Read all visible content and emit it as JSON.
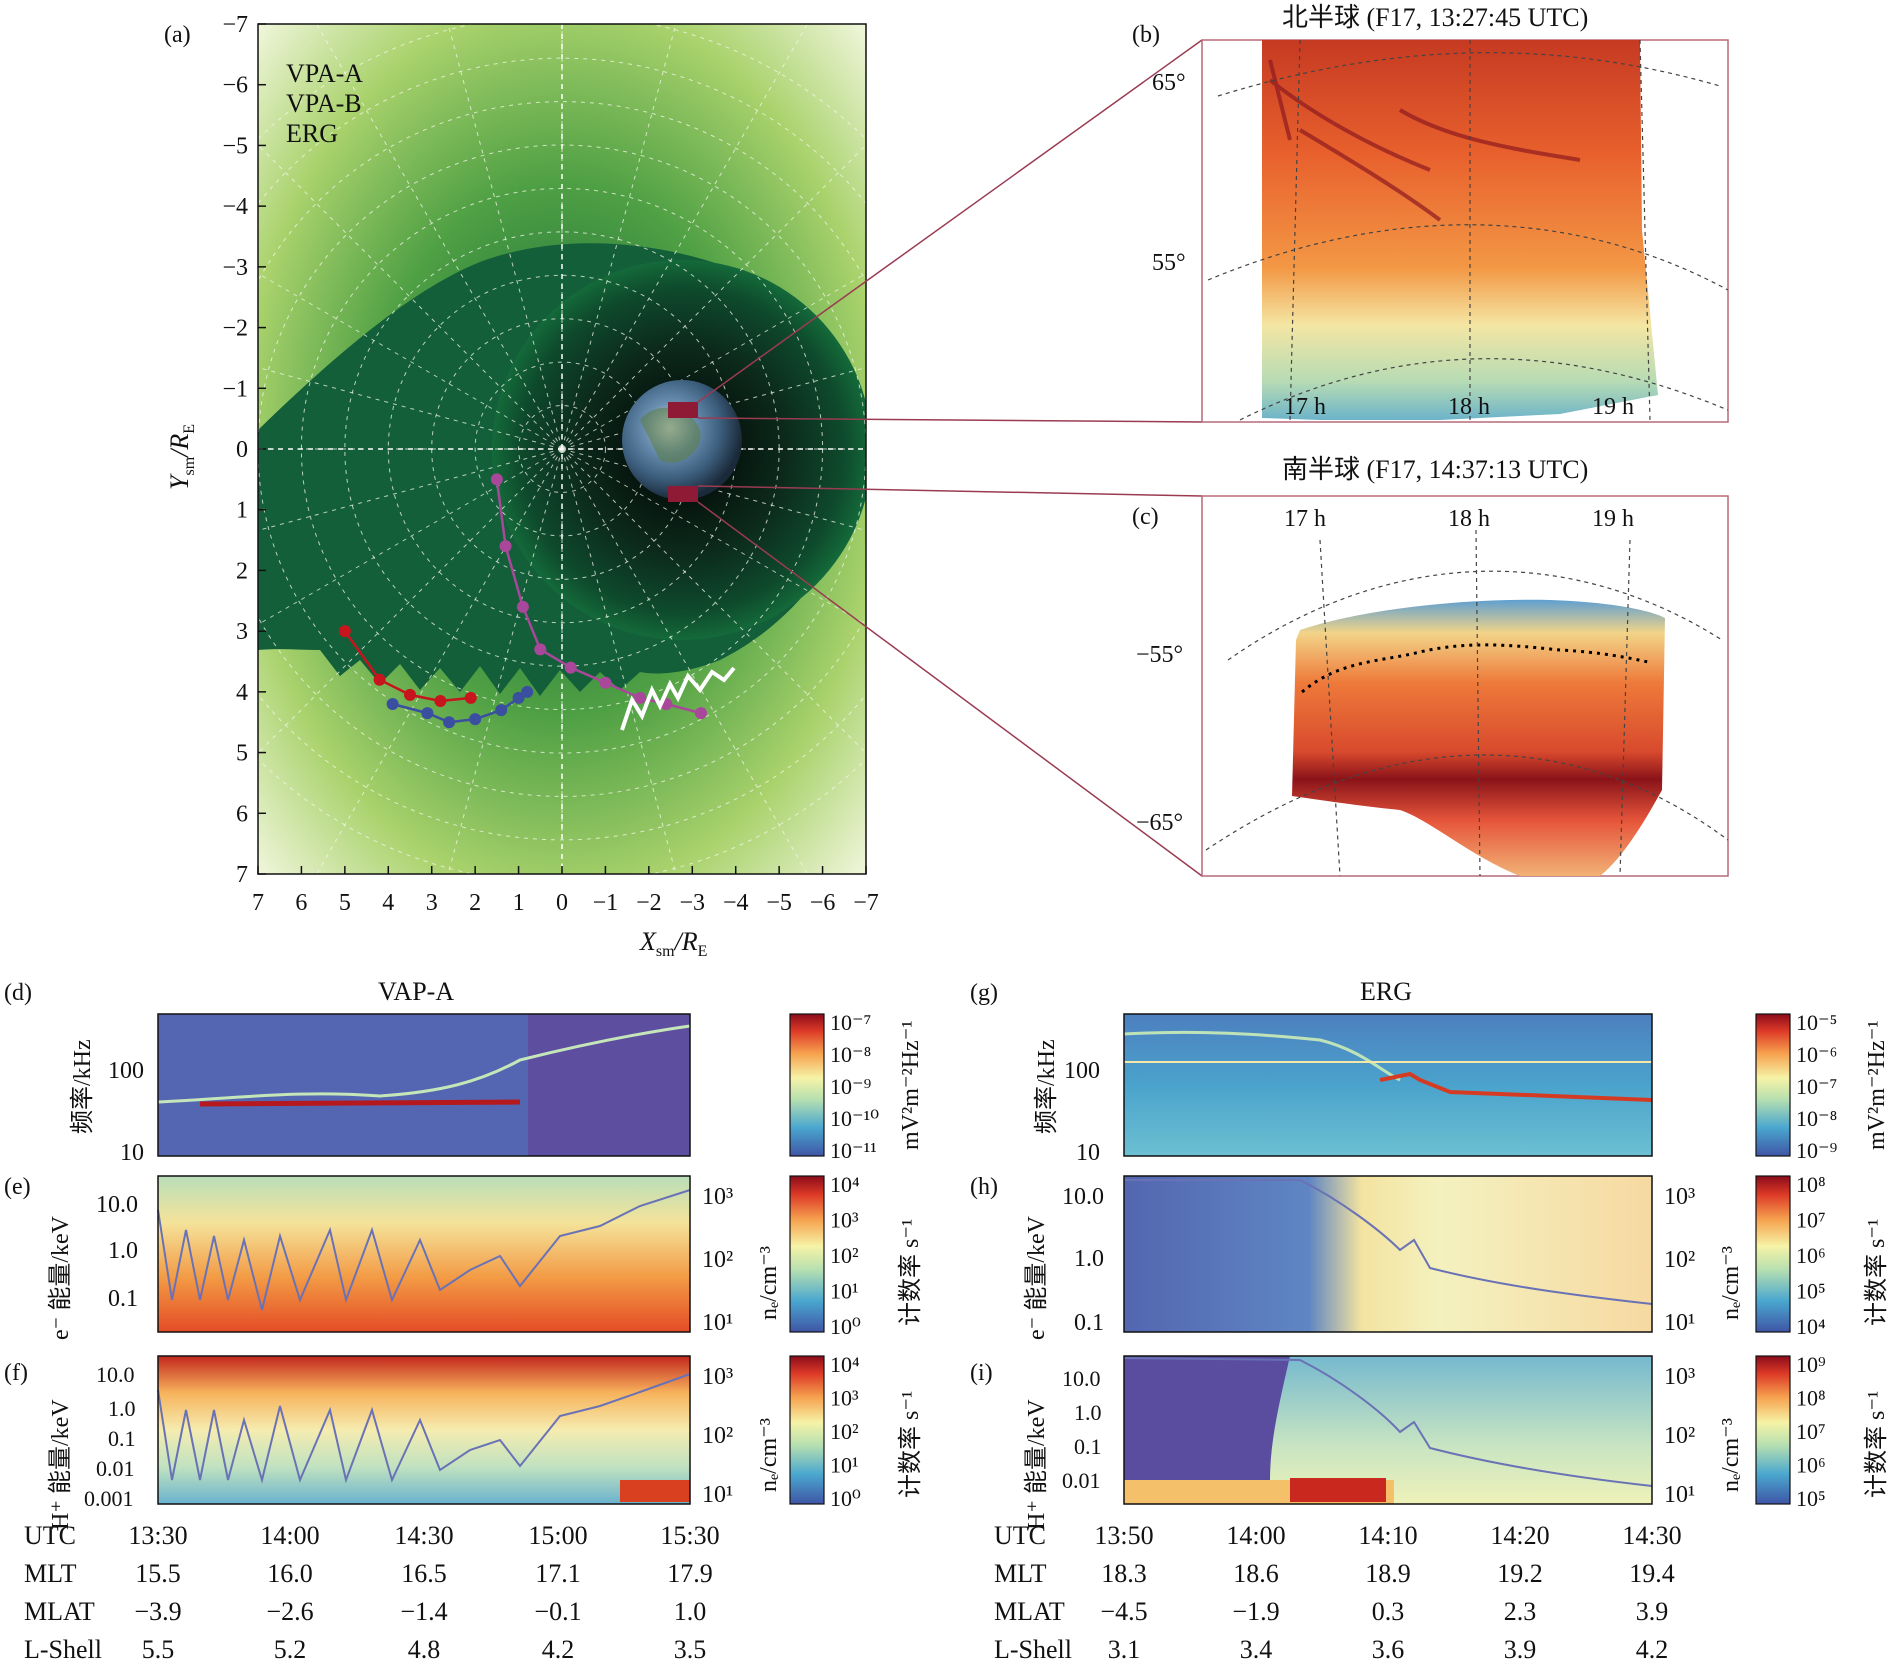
{
  "panels": {
    "a": {
      "letter": "(a)",
      "xlabel_main": "X",
      "xlabel_sub": "sm",
      "xlabel_unit": "/R",
      "xlabel_unit_sub": "E",
      "ylabel_main": "Y",
      "ylabel_sub": "sm",
      "ylabel_unit": "/R",
      "ylabel_unit_sub": "E",
      "xticks": [
        "7",
        "6",
        "5",
        "4",
        "3",
        "2",
        "1",
        "0",
        "−1",
        "−2",
        "−3",
        "−4",
        "−5",
        "−6",
        "−7"
      ],
      "yticks": [
        "−7",
        "−6",
        "−5",
        "−4",
        "−3",
        "−2",
        "−1",
        "0",
        "1",
        "2",
        "3",
        "4",
        "5",
        "6",
        "7"
      ],
      "legend": [
        {
          "label": "VPA-A",
          "color": "#3b4fa0"
        },
        {
          "label": "VPA-B",
          "color": "#c8141c"
        },
        {
          "label": "ERG",
          "color": "#a9479a"
        }
      ]
    },
    "b": {
      "letter": "(b)",
      "title": "北半球 (F17, 13:27:45 UTC)",
      "lat_labels": [
        "65°",
        "55°"
      ],
      "mlt_labels": [
        "17 h",
        "18 h",
        "19 h"
      ]
    },
    "c": {
      "letter": "(c)",
      "title": "南半球 (F17, 14:37:13 UTC)",
      "lat_labels": [
        "−55°",
        "−65°"
      ],
      "mlt_labels": [
        "17 h",
        "18 h",
        "19 h"
      ]
    },
    "d": {
      "letter": "(d)",
      "title": "VAP-A",
      "ylabel": "频率/kHz",
      "yticks": [
        "100",
        "10"
      ],
      "cbar_ticks": [
        "10⁻⁷",
        "10⁻⁸",
        "10⁻⁹",
        "10⁻¹⁰",
        "10⁻¹¹"
      ],
      "cbar_label": "mV²m⁻²Hz⁻¹"
    },
    "e": {
      "letter": "(e)",
      "ylabel": "e⁻ 能量/keV",
      "yticks": [
        "10.0",
        "1.0",
        "0.1"
      ],
      "right_ticks": [
        "10³",
        "10²",
        "10¹"
      ],
      "right_label": "nₑ/cm⁻³",
      "cbar_ticks": [
        "10⁴",
        "10³",
        "10²",
        "10¹",
        "10⁰"
      ],
      "cbar_label": "计数率 s⁻¹"
    },
    "f": {
      "letter": "(f)",
      "ylabel": "H⁺ 能量/keV",
      "yticks": [
        "10.0",
        "1.0",
        "0.1",
        "0.01",
        "0.001"
      ],
      "right_ticks": [
        "10³",
        "10²",
        "10¹"
      ],
      "right_label": "nₑ/cm⁻³",
      "cbar_ticks": [
        "10⁴",
        "10³",
        "10²",
        "10¹",
        "10⁰"
      ],
      "cbar_label": "计数率 s⁻¹"
    },
    "g": {
      "letter": "(g)",
      "title": "ERG",
      "ylabel": "频率/kHz",
      "yticks": [
        "100",
        "10"
      ],
      "cbar_ticks": [
        "10⁻⁵",
        "10⁻⁶",
        "10⁻⁷",
        "10⁻⁸",
        "10⁻⁹"
      ],
      "cbar_label": "mV²m⁻²Hz⁻¹"
    },
    "h": {
      "letter": "(h)",
      "ylabel": "e⁻ 能量/keV",
      "yticks": [
        "10.0",
        "1.0",
        "0.1"
      ],
      "right_ticks": [
        "10³",
        "10²",
        "10¹"
      ],
      "right_label": "nₑ/cm⁻³",
      "cbar_ticks": [
        "10⁸",
        "10⁷",
        "10⁶",
        "10⁵",
        "10⁴"
      ],
      "cbar_label": "计数率 s⁻¹"
    },
    "i": {
      "letter": "(i)",
      "ylabel": "H⁺ 能量/keV",
      "yticks": [
        "10.0",
        "1.0",
        "0.1",
        "0.01"
      ],
      "right_ticks": [
        "10³",
        "10²",
        "10¹"
      ],
      "right_label": "nₑ/cm⁻³",
      "cbar_ticks": [
        "10⁹",
        "10⁸",
        "10⁷",
        "10⁶",
        "10⁵"
      ],
      "cbar_label": "计数率 s⁻¹"
    }
  },
  "ephemeris_left": {
    "rows": [
      {
        "label": "UTC",
        "values": [
          "13:30",
          "14:00",
          "14:30",
          "15:00",
          "15:30"
        ]
      },
      {
        "label": "MLT",
        "values": [
          "15.5",
          "16.0",
          "16.5",
          "17.1",
          "17.9"
        ]
      },
      {
        "label": "MLAT",
        "values": [
          "−3.9",
          "−2.6",
          "−1.4",
          "−0.1",
          "1.0"
        ]
      },
      {
        "label": "L-Shell",
        "values": [
          "5.5",
          "5.2",
          "4.8",
          "4.2",
          "3.5"
        ]
      }
    ]
  },
  "ephemeris_right": {
    "rows": [
      {
        "label": "UTC",
        "values": [
          "13:50",
          "14:00",
          "14:10",
          "14:20",
          "14:30"
        ]
      },
      {
        "label": "MLT",
        "values": [
          "18.3",
          "18.6",
          "18.9",
          "19.2",
          "19.4"
        ]
      },
      {
        "label": "MLAT",
        "values": [
          "−4.5",
          "−1.9",
          "0.3",
          "2.3",
          "3.9"
        ]
      },
      {
        "label": "L-Shell",
        "values": [
          "3.1",
          "3.4",
          "3.6",
          "3.9",
          "4.2"
        ]
      }
    ]
  },
  "chart_data": [
    {
      "type": "scatter",
      "panel": "a",
      "xlabel": "Xsm/RE",
      "ylabel": "Ysm/RE",
      "xlim": [
        7,
        -7
      ],
      "ylim": [
        -7,
        7
      ],
      "grid": true,
      "legend": "top-left",
      "series": [
        {
          "name": "VPA-A",
          "color": "#3b4fa0",
          "x": [
            3.9,
            3.1,
            2.6,
            2.0,
            1.4,
            1.0,
            0.8
          ],
          "y": [
            4.2,
            4.35,
            4.5,
            4.45,
            4.3,
            4.1,
            4.0
          ]
        },
        {
          "name": "VPA-B",
          "color": "#c8141c",
          "x": [
            5.0,
            4.2,
            3.5,
            2.8,
            2.1
          ],
          "y": [
            3.0,
            3.8,
            4.05,
            4.15,
            4.1
          ]
        },
        {
          "name": "ERG",
          "color": "#a9479a",
          "x": [
            1.5,
            1.3,
            0.9,
            0.5,
            -0.2,
            -1.0,
            -1.8,
            -2.4,
            -3.2
          ],
          "y": [
            0.5,
            1.6,
            2.6,
            3.3,
            3.6,
            3.85,
            4.1,
            4.2,
            4.35
          ]
        }
      ]
    },
    {
      "type": "heatmap",
      "panel": "d",
      "title": "VAP-A",
      "ylabel": "频率/kHz",
      "ylim": [
        10,
        400
      ]
    },
    {
      "type": "heatmap",
      "panel": "e",
      "ylabel": "e⁻ 能量/keV",
      "ylim": [
        0.03,
        30
      ]
    },
    {
      "type": "heatmap",
      "panel": "f",
      "ylabel": "H⁺ 能量/keV",
      "ylim": [
        0.0008,
        30
      ]
    },
    {
      "type": "heatmap",
      "panel": "g",
      "title": "ERG",
      "ylabel": "频率/kHz",
      "ylim": [
        10,
        400
      ]
    },
    {
      "type": "heatmap",
      "panel": "h",
      "ylabel": "e⁻ 能量/keV",
      "ylim": [
        0.08,
        20
      ]
    },
    {
      "type": "heatmap",
      "panel": "i",
      "ylabel": "H⁺ 能量/keV",
      "ylim": [
        0.005,
        20
      ]
    }
  ]
}
